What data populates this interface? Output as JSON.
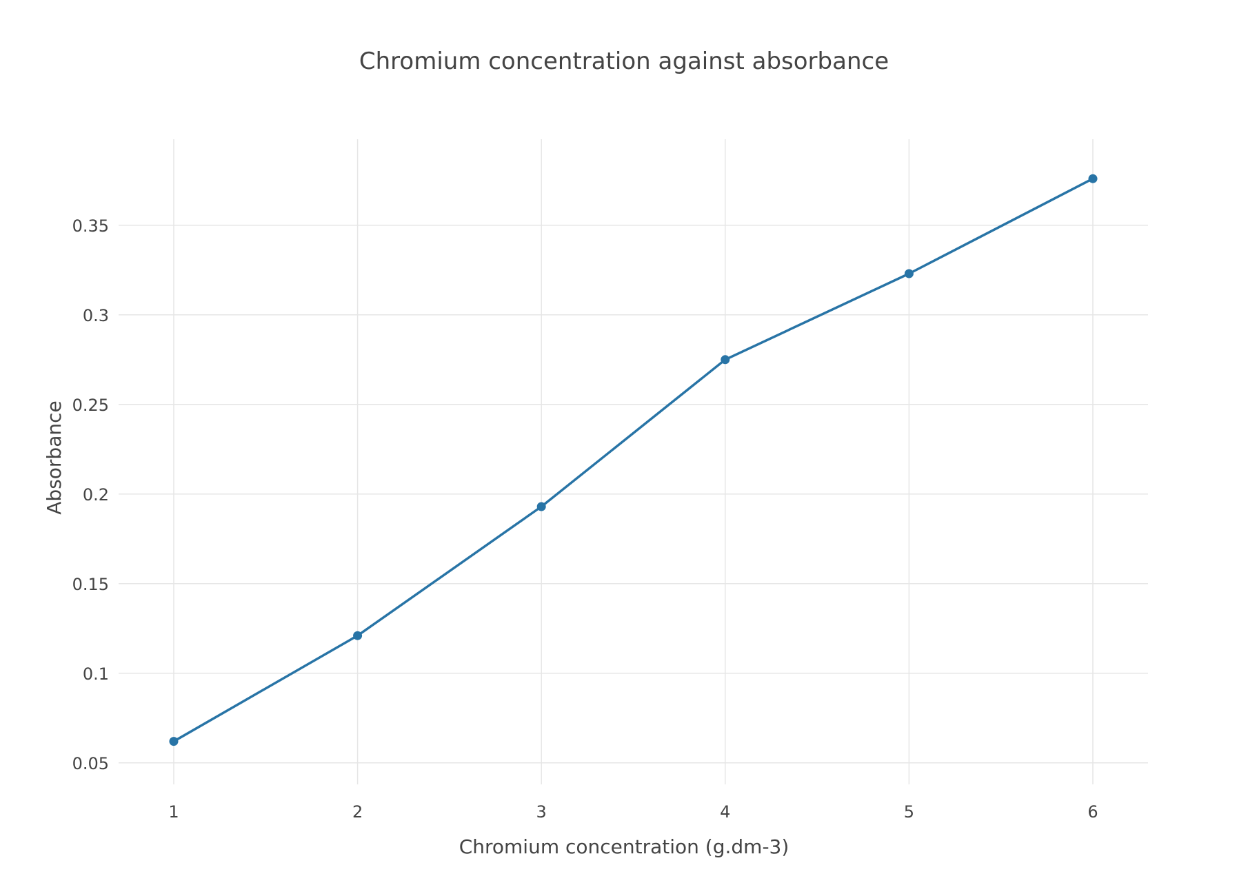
{
  "chart_data": {
    "type": "line",
    "title": "Chromium concentration against absorbance",
    "xlabel": "Chromium concentration (g.dm-3)",
    "ylabel": "Absorbance",
    "x": [
      1,
      2,
      3,
      4,
      5,
      6
    ],
    "series": [
      {
        "values": [
          0.062,
          0.121,
          0.193,
          0.275,
          0.323,
          0.376
        ],
        "color": "#2874a6"
      }
    ],
    "xticks": [
      1,
      2,
      3,
      4,
      5,
      6
    ],
    "xtick_labels": [
      "1",
      "2",
      "3",
      "4",
      "5",
      "6"
    ],
    "yticks": [
      0.05,
      0.1,
      0.15,
      0.2,
      0.25,
      0.3,
      0.35
    ],
    "ytick_labels": [
      "0.05",
      "0.1",
      "0.15",
      "0.2",
      "0.25",
      "0.3",
      "0.35"
    ],
    "xlim": [
      0.7,
      6.3
    ],
    "ylim": [
      0.038,
      0.398
    ],
    "grid": true,
    "legend": "none",
    "markers": true
  }
}
